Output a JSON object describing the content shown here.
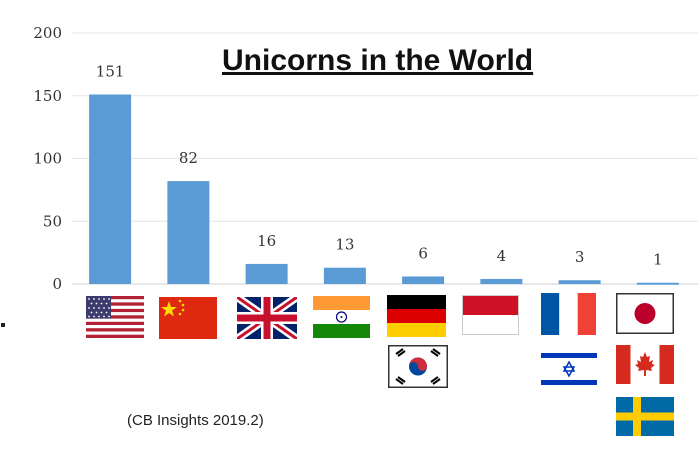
{
  "chart_data": {
    "type": "bar",
    "title": "Unicorns in the World",
    "categories": [
      "United States",
      "China",
      "United Kingdom",
      "India",
      "Germany / South Korea",
      "Indonesia",
      "France / Israel",
      "Japan / Canada / Sweden"
    ],
    "values": [
      151,
      82,
      16,
      13,
      6,
      4,
      3,
      1
    ],
    "data_labels": [
      "151",
      "82",
      "16",
      "13",
      "6",
      "4",
      "3",
      "1"
    ],
    "ylim": [
      0,
      200
    ],
    "yticks": [
      0,
      50,
      100,
      150,
      200
    ],
    "ytick_labels": [
      "0",
      "50",
      "100",
      "150",
      "200"
    ],
    "xlabel": "",
    "ylabel": "",
    "grid": true,
    "legend": "none",
    "bar_color": "#5b9bd5",
    "source": "(CB Insights  2019.2)"
  },
  "flags": [
    {
      "country": "United States",
      "icon": "flag-usa-icon"
    },
    {
      "country": "China",
      "icon": "flag-china-icon"
    },
    {
      "country": "United Kingdom",
      "icon": "flag-uk-icon"
    },
    {
      "country": "India",
      "icon": "flag-india-icon"
    },
    {
      "country": "Germany",
      "icon": "flag-germany-icon"
    },
    {
      "country": "South Korea",
      "icon": "flag-south-korea-icon"
    },
    {
      "country": "Indonesia",
      "icon": "flag-indonesia-icon"
    },
    {
      "country": "France",
      "icon": "flag-france-icon"
    },
    {
      "country": "Israel",
      "icon": "flag-israel-icon"
    },
    {
      "country": "Japan",
      "icon": "flag-japan-icon"
    },
    {
      "country": "Canada",
      "icon": "flag-canada-icon"
    },
    {
      "country": "Sweden",
      "icon": "flag-sweden-icon"
    }
  ]
}
